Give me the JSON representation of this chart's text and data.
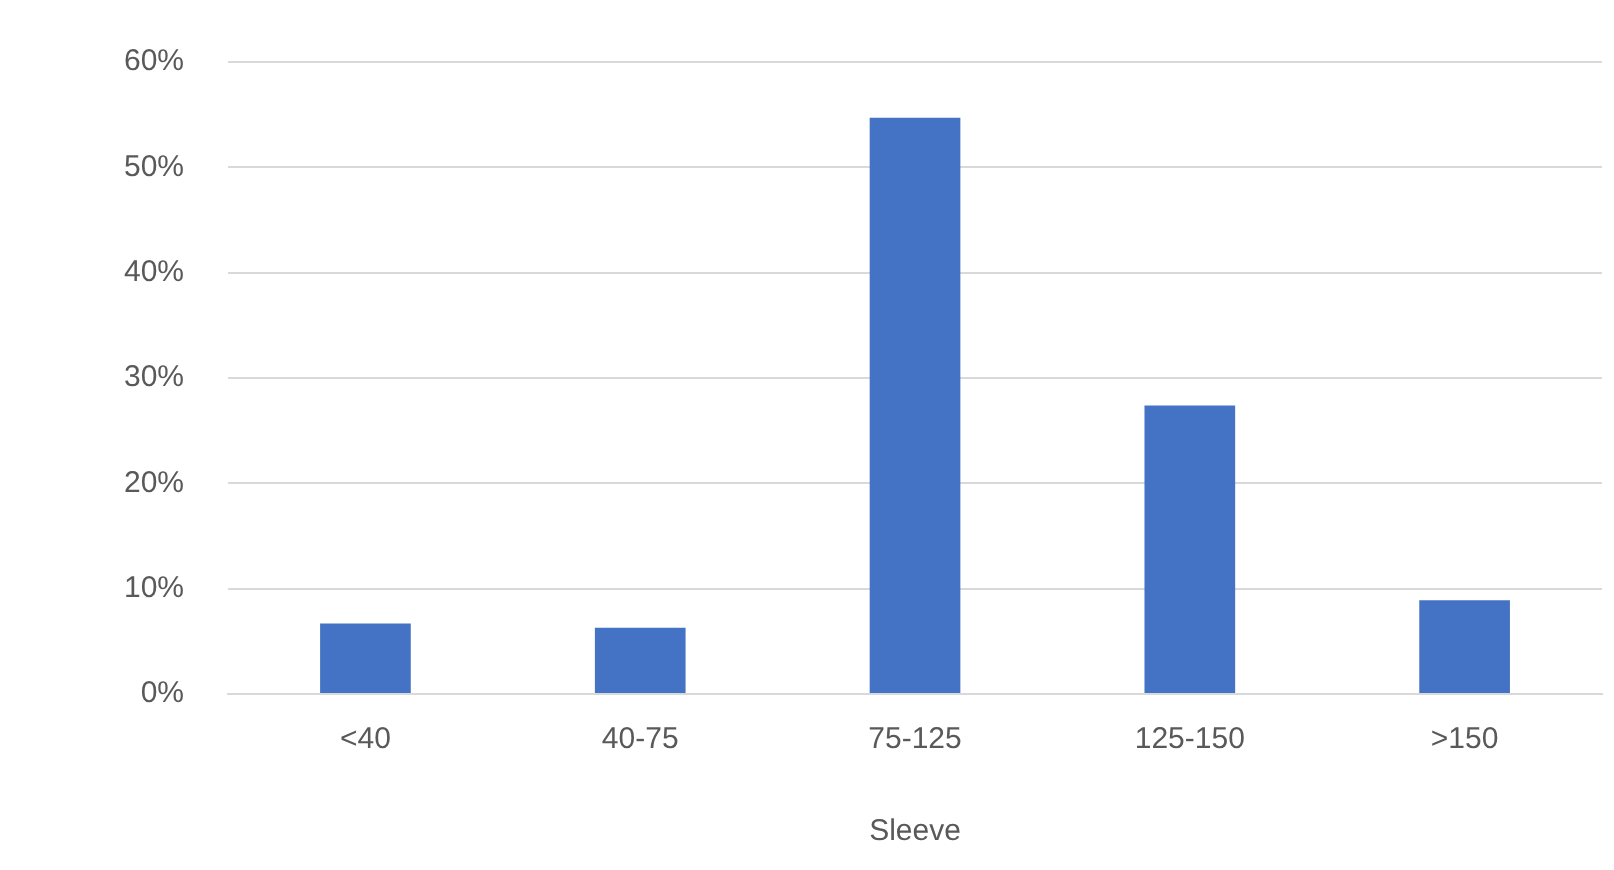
{
  "chart_data": {
    "type": "bar",
    "xlabel": "Sleeve",
    "categories": [
      "<40",
      "40-75",
      "75-125",
      "125-150",
      ">150"
    ],
    "values": [
      0.067,
      0.063,
      0.547,
      0.274,
      0.089
    ],
    "color": "#4472c4",
    "ylim": [
      0,
      0.6
    ],
    "yticks": [
      {
        "value": 0,
        "label": "0%"
      },
      {
        "value": 0.1,
        "label": "10%"
      },
      {
        "value": 0.2,
        "label": "20%"
      },
      {
        "value": 0.3,
        "label": "30%"
      },
      {
        "value": 0.4,
        "label": "40%"
      },
      {
        "value": 0.5,
        "label": "50%"
      },
      {
        "value": 0.6,
        "label": "60%"
      }
    ],
    "grid": "y",
    "legend": false
  }
}
